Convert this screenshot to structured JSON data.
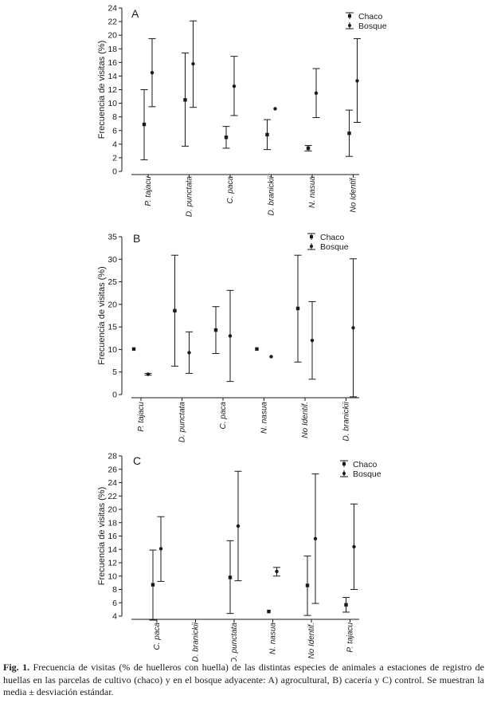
{
  "chart_data": [
    {
      "type": "scatter",
      "panel_letter": "A",
      "ylabel": "Frecuencia de visitas (%)",
      "ylim": [
        0,
        24
      ],
      "yticks": [
        0,
        2,
        4,
        6,
        8,
        10,
        12,
        14,
        16,
        18,
        20,
        22,
        24
      ],
      "categories": [
        "P. tajacu",
        "D. punctata",
        "C. paca",
        "D. branickii",
        "N. nasua",
        "No Identif."
      ],
      "legend_position": "top-right",
      "series": [
        {
          "name": "Chaco",
          "marker": "square",
          "values": [
            6.9,
            10.5,
            5.0,
            5.4,
            3.4,
            5.6
          ],
          "lower": [
            1.7,
            3.7,
            3.4,
            3.2,
            3.0,
            2.2
          ],
          "upper": [
            12.0,
            17.4,
            6.6,
            7.6,
            3.8,
            9.0
          ]
        },
        {
          "name": "Bosque",
          "marker": "circle",
          "values": [
            14.5,
            15.8,
            12.5,
            9.2,
            11.5,
            13.3
          ],
          "lower": [
            9.5,
            9.4,
            8.2,
            null,
            7.9,
            7.2
          ],
          "upper": [
            19.5,
            22.1,
            16.9,
            null,
            15.1,
            19.5
          ]
        }
      ]
    },
    {
      "type": "scatter",
      "panel_letter": "B",
      "ylabel": "Frecuencia de visitas (%)",
      "ylim": [
        0,
        35
      ],
      "yticks": [
        0,
        5,
        10,
        15,
        20,
        25,
        30,
        35
      ],
      "categories": [
        "P. tajacu",
        "D. punctata",
        "C. paca",
        "N. nasua",
        "No Identif.",
        "D. branickii"
      ],
      "legend_position": "top-right",
      "series": [
        {
          "name": "Chaco",
          "marker": "square",
          "values": [
            10.1,
            18.6,
            14.3,
            10.1,
            19.1,
            null
          ],
          "lower": [
            null,
            6.3,
            9.1,
            null,
            7.2,
            null
          ],
          "upper": [
            null,
            30.9,
            19.5,
            null,
            30.9,
            null
          ]
        },
        {
          "name": "Bosque",
          "marker": "circle",
          "values": [
            4.5,
            9.3,
            13.0,
            8.4,
            12.0,
            14.8
          ],
          "lower": [
            4.3,
            4.7,
            2.9,
            null,
            3.4,
            -0.5
          ],
          "upper": [
            4.7,
            13.9,
            23.1,
            null,
            20.6,
            30.1
          ]
        }
      ]
    },
    {
      "type": "scatter",
      "panel_letter": "C",
      "ylabel": "Frecuencia de visitas (%)",
      "ylim": [
        4,
        28
      ],
      "yticks": [
        4,
        6,
        8,
        10,
        12,
        14,
        16,
        18,
        20,
        22,
        24,
        26,
        28
      ],
      "categories": [
        "C. paca",
        "D. branickii",
        "D. punctata",
        "N. nasua",
        "No Identif.",
        "P. tajacu"
      ],
      "legend_position": "top-right",
      "series": [
        {
          "name": "Chaco",
          "marker": "square",
          "values": [
            8.7,
            null,
            9.8,
            4.7,
            8.6,
            5.7
          ],
          "lower": [
            3.4,
            null,
            4.4,
            null,
            4.1,
            4.6
          ],
          "upper": [
            13.9,
            null,
            15.3,
            null,
            13.0,
            6.8
          ]
        },
        {
          "name": "Bosque",
          "marker": "circle",
          "values": [
            14.1,
            null,
            17.5,
            10.7,
            15.6,
            14.4
          ],
          "lower": [
            9.2,
            null,
            9.3,
            10.0,
            5.9,
            8.0
          ],
          "upper": [
            18.9,
            null,
            25.7,
            11.3,
            25.3,
            20.8
          ]
        }
      ]
    }
  ],
  "caption": {
    "label": "Fig. 1.",
    "text": " Frecuencia de visitas (% de huelleros con huella) de las distintas especies de animales a estaciones de registro de huellas en las parcelas de cultivo (chaco) y en el bosque adyacente: A) agrocultural, B) cacería y C) control. Se muestran la media ± desviación estándar."
  },
  "colors": {
    "ink": "#1a1a1a",
    "background": "#ffffff"
  }
}
